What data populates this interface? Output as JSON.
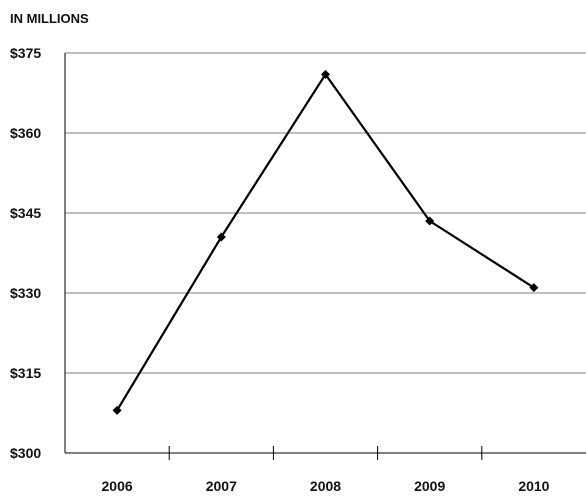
{
  "chart_data": {
    "type": "line",
    "unit_label": "IN MILLIONS",
    "categories": [
      "2006",
      "2007",
      "2008",
      "2009",
      "2010"
    ],
    "series": [
      {
        "values": [
          308,
          340.5,
          371,
          343.5,
          331
        ]
      }
    ],
    "yticks": [
      300,
      315,
      330,
      345,
      360,
      375
    ],
    "ytick_labels": [
      "$300",
      "$315",
      "$330",
      "$345",
      "$360",
      "$375"
    ],
    "ylim": [
      300,
      375
    ],
    "grid": "horizontal",
    "colors": {
      "line": "#000000",
      "grid": "#808080",
      "axis": "#000000"
    }
  }
}
